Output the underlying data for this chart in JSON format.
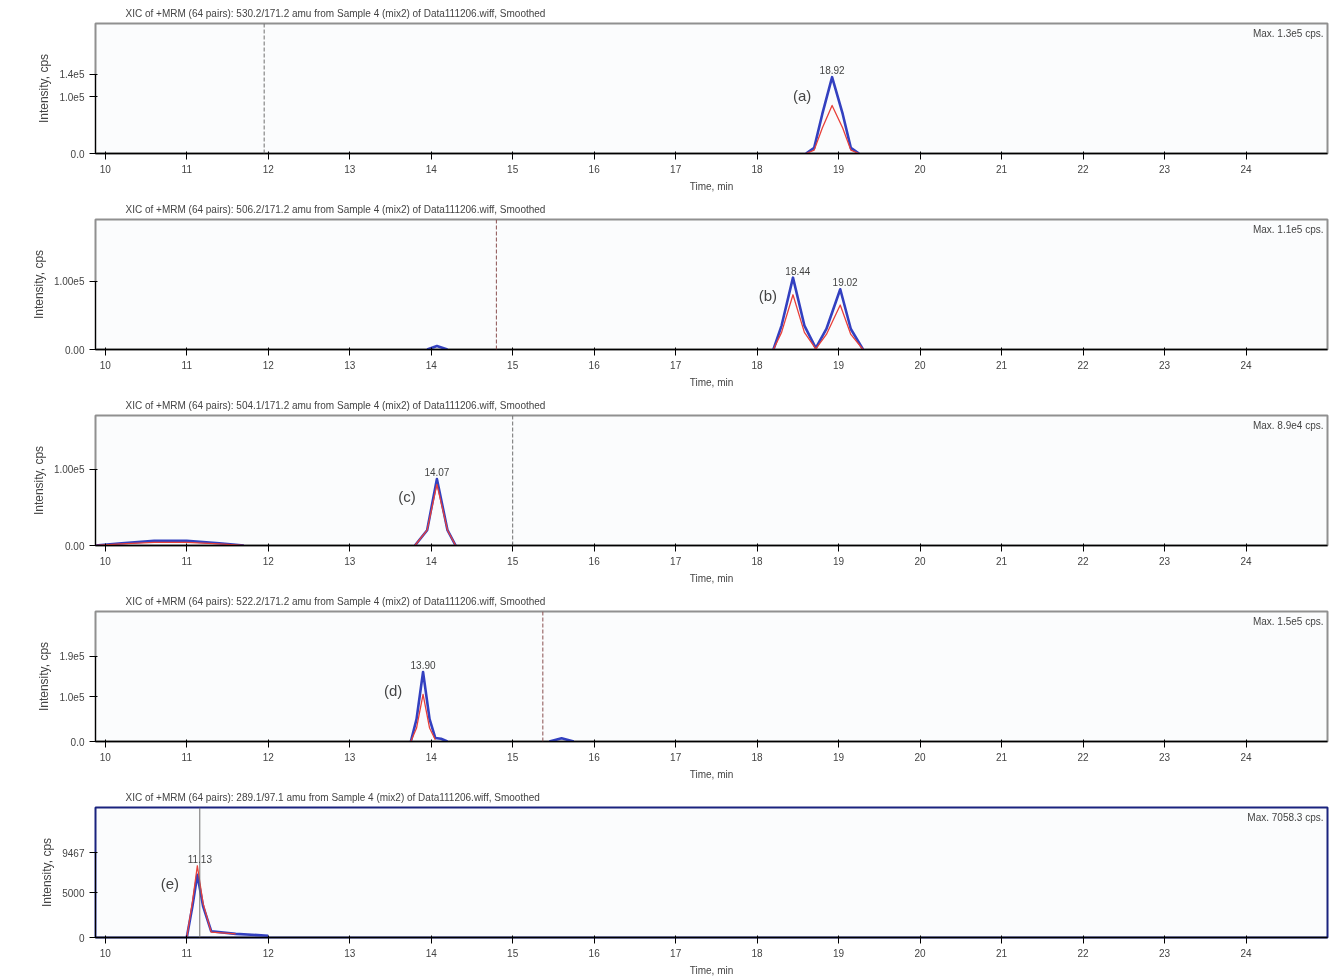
{
  "chart_data": [
    {
      "type": "line",
      "title": "XIC of +MRM (64 pairs): 530.2/171.2 amu from Sample 4 (mix2) of Data111206.wiff, Smoothed",
      "xlabel": "Time, min",
      "ylabel": "Intensity, cps",
      "xlim": [
        9.88,
        25.0
      ],
      "ylim": [
        0,
        230000
      ],
      "xticks": [
        10,
        11,
        12,
        13,
        14,
        15,
        16,
        17,
        18,
        19,
        20,
        21,
        22,
        23,
        24
      ],
      "yticks": [
        {
          "value": 0,
          "label": "0.0"
        },
        {
          "value": 100000,
          "label": "1.0e5"
        },
        {
          "value": 140000,
          "label": "1.4e5"
        }
      ],
      "series": [
        {
          "color": "#3340c0",
          "x": [
            18.6,
            18.7,
            18.8,
            18.92,
            19.05,
            19.15,
            19.25
          ],
          "values": [
            0,
            10000,
            70000,
            135000,
            70000,
            10000,
            0
          ]
        },
        {
          "color": "#e8403a",
          "x": [
            18.6,
            18.7,
            18.8,
            18.92,
            19.05,
            19.15,
            19.25
          ],
          "values": [
            0,
            6000,
            45000,
            85000,
            45000,
            6000,
            0
          ]
        }
      ],
      "ref_lines": [
        {
          "axis": "x",
          "value": 11.95,
          "color": "#707070",
          "line_style": "dashed"
        }
      ],
      "annotations": [
        "Max. 1.3e5 cps.",
        {
          "text": "18.92",
          "x": 18.92,
          "y": 135000
        },
        "(a)"
      ],
      "grid": false
    },
    {
      "type": "line",
      "title": "XIC of +MRM (64 pairs): 506.2/171.2 amu from Sample 4 (mix2) of Data111206.wiff, Smoothed",
      "xlabel": "Time, min",
      "ylabel": "Intensity, cps",
      "xlim": [
        9.88,
        25.0
      ],
      "ylim": [
        0,
        190000
      ],
      "xticks": [
        10,
        11,
        12,
        13,
        14,
        15,
        16,
        17,
        18,
        19,
        20,
        21,
        22,
        23,
        24
      ],
      "yticks": [
        {
          "value": 0,
          "label": "0.00"
        },
        {
          "value": 100000,
          "label": "1.00e5"
        }
      ],
      "series": [
        {
          "color": "#3340c0",
          "x": [
            13.95,
            14.07,
            14.2,
            16.0,
            18.2,
            18.3,
            18.44,
            18.58,
            18.72,
            18.85,
            19.02,
            19.15,
            19.3
          ],
          "values": [
            0,
            5000,
            0,
            null,
            0,
            35000,
            105000,
            35000,
            2000,
            30000,
            88000,
            30000,
            0
          ]
        },
        {
          "color": "#e8403a",
          "x": [
            18.2,
            18.3,
            18.44,
            18.58,
            18.72,
            18.85,
            19.02,
            19.15,
            19.3
          ],
          "values": [
            0,
            25000,
            80000,
            25000,
            1000,
            22000,
            65000,
            22000,
            0
          ]
        }
      ],
      "ref_lines": [
        {
          "axis": "x",
          "value": 14.8,
          "color": "#8a5050",
          "line_style": "dashed"
        }
      ],
      "annotations": [
        "Max. 1.1e5 cps.",
        {
          "text": "18.44",
          "x": 18.5,
          "y": 105000
        },
        {
          "text": "19.02",
          "x": 19.08,
          "y": 88000
        },
        "(b)"
      ],
      "grid": false
    },
    {
      "type": "line",
      "title": "XIC of +MRM (64 pairs): 504.1/171.2 amu from Sample 4 (mix2) of Data111206.wiff, Smoothed",
      "xlabel": "Time, min",
      "ylabel": "Intensity, cps",
      "xlim": [
        9.88,
        25.0
      ],
      "ylim": [
        0,
        170000
      ],
      "xticks": [
        10,
        11,
        12,
        13,
        14,
        15,
        16,
        17,
        18,
        19,
        20,
        21,
        22,
        23,
        24
      ],
      "yticks": [
        {
          "value": 0,
          "label": "0.00"
        },
        {
          "value": 100000,
          "label": "1.00e5"
        }
      ],
      "series": [
        {
          "color": "#3340c0",
          "x": [
            9.88,
            10.2,
            10.6,
            11.0,
            11.4,
            11.7,
            12.5,
            13.8,
            13.95,
            14.07,
            14.2,
            14.3
          ],
          "values": [
            0,
            3000,
            6000,
            6000,
            3000,
            0,
            null,
            0,
            20000,
            87000,
            20000,
            0
          ]
        },
        {
          "color": "#e8403a",
          "x": [
            9.88,
            10.2,
            10.6,
            11.0,
            11.4,
            11.7,
            12.5,
            13.8,
            13.95,
            14.07,
            14.2,
            14.3
          ],
          "values": [
            0,
            2000,
            4000,
            4000,
            2000,
            0,
            null,
            0,
            20000,
            80000,
            20000,
            0
          ]
        }
      ],
      "ref_lines": [
        {
          "axis": "x",
          "value": 15.0,
          "color": "#707070",
          "line_style": "dashed"
        }
      ],
      "annotations": [
        "Max. 8.9e4 cps.",
        {
          "text": "14.07",
          "x": 14.07,
          "y": 87000
        },
        "(c)"
      ],
      "grid": false
    },
    {
      "type": "line",
      "title": "XIC of +MRM (64 pairs): 522.2/171.2 amu from Sample 4 (mix2) of Data111206.wiff, Smoothed",
      "xlabel": "Time, min",
      "ylabel": "Intensity, cps",
      "xlim": [
        9.88,
        25.0
      ],
      "ylim": [
        0,
        290000
      ],
      "xticks": [
        10,
        11,
        12,
        13,
        14,
        15,
        16,
        17,
        18,
        19,
        20,
        21,
        22,
        23,
        24
      ],
      "yticks": [
        {
          "value": 0,
          "label": "0.0"
        },
        {
          "value": 100000,
          "label": "1.0e5"
        },
        {
          "value": 190000,
          "label": "1.9e5"
        }
      ],
      "series": [
        {
          "color": "#3340c0",
          "x": [
            13.75,
            13.82,
            13.9,
            13.98,
            14.05,
            14.12,
            14.2,
            15.0,
            15.45,
            15.6,
            15.75
          ],
          "values": [
            0,
            50000,
            155000,
            50000,
            8000,
            6000,
            0,
            null,
            0,
            7000,
            0
          ]
        },
        {
          "color": "#e8403a",
          "x": [
            13.75,
            13.82,
            13.9,
            13.98,
            14.05
          ],
          "values": [
            0,
            30000,
            105000,
            30000,
            4000
          ]
        }
      ],
      "ref_lines": [
        {
          "axis": "x",
          "value": 15.37,
          "color": "#8a5050",
          "line_style": "dashed"
        }
      ],
      "annotations": [
        "Max. 1.5e5 cps.",
        {
          "text": "13.90",
          "x": 13.9,
          "y": 155000
        },
        "(d)"
      ],
      "grid": false
    },
    {
      "type": "line",
      "title": "XIC of +MRM (64 pairs): 289.1/97.1 amu from Sample 4 (mix2) of Data111206.wiff, Smoothed",
      "xlabel": "Time, min",
      "ylabel": "Intensity, cps",
      "xlim": [
        9.88,
        25.0
      ],
      "ylim": [
        0,
        14500
      ],
      "xticks": [
        10,
        11,
        12,
        13,
        14,
        15,
        16,
        17,
        18,
        19,
        20,
        21,
        22,
        23,
        24
      ],
      "yticks": [
        0,
        5000,
        9467
      ],
      "series": [
        {
          "color": "#3340c0",
          "x": [
            11.0,
            11.07,
            11.13,
            11.2,
            11.3,
            11.6,
            12.0
          ],
          "values": [
            0,
            3500,
            7000,
            3500,
            700,
            400,
            200
          ]
        },
        {
          "color": "#e8403a",
          "x": [
            11.0,
            11.07,
            11.13,
            11.2,
            11.3,
            11.6
          ],
          "values": [
            0,
            4000,
            8000,
            3800,
            600,
            400
          ]
        }
      ],
      "ref_lines": [
        {
          "axis": "x",
          "value": 11.16,
          "color": "#707070",
          "line_style": "solid"
        }
      ],
      "annotations": [
        "Max. 7058.3 cps.",
        {
          "text": "11.13",
          "x": 11.16,
          "y": 8000
        },
        "(e)"
      ],
      "grid": false
    }
  ]
}
